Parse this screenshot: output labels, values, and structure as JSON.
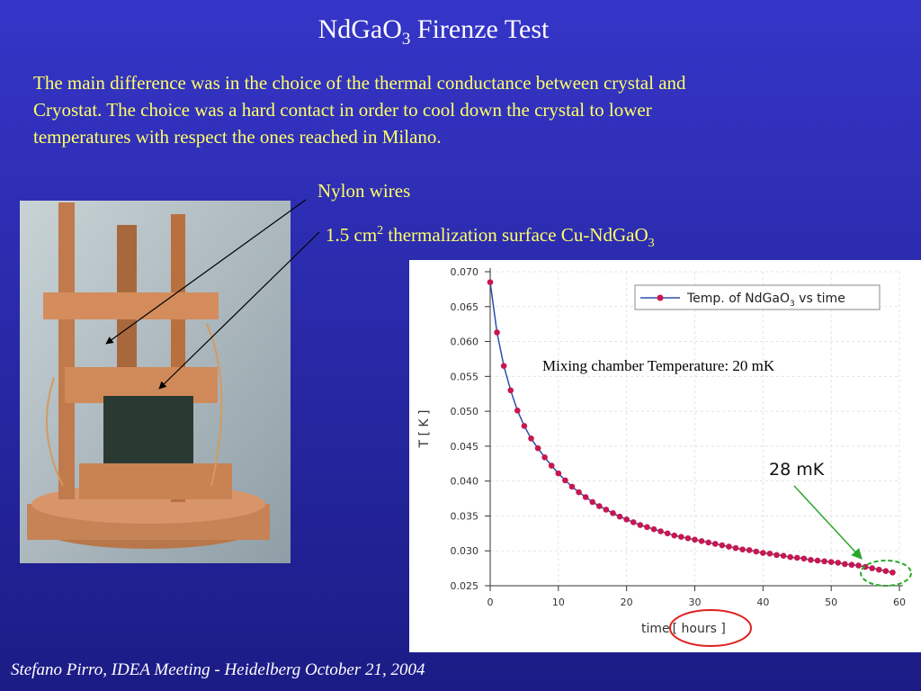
{
  "title": {
    "parts": [
      "NdGaO",
      "3",
      " Firenze Test"
    ]
  },
  "body": {
    "lines": [
      "The main difference was in the choice of the thermal conductance between crystal and",
      "Cryostat. The choice was a hard contact in order to cool  down the crystal to lower",
      "temperatures  with respect the ones reached in Milano."
    ]
  },
  "annotations": {
    "nylon": "Nylon wires",
    "surface": {
      "parts": [
        "1.5 cm",
        "2",
        " thermalization surface Cu-NdGaO",
        "3"
      ]
    },
    "mixing": "Mixing chamber Temperature: 20 mK"
  },
  "chart": {
    "type": "line",
    "ylabel": "T [ K ]",
    "xlabel": {
      "parts": [
        "time",
        "[ hours ]"
      ]
    },
    "legend": {
      "parts": [
        "Temp. of NdGaO",
        "3",
        " vs time"
      ]
    },
    "callout": "28 mK",
    "series_color": "#c8174f",
    "line_color": "#2b4fa8",
    "xlim": [
      0,
      60
    ],
    "ylim": [
      0.025,
      0.07
    ],
    "xticks": [
      0,
      10,
      20,
      30,
      40,
      50,
      60
    ],
    "yticks": [
      {
        "value": 0.025,
        "label": "0.025"
      },
      {
        "value": 0.03,
        "label": "0.030"
      },
      {
        "value": 0.035,
        "label": "0.035"
      },
      {
        "value": 0.04,
        "label": "0.040"
      },
      {
        "value": 0.045,
        "label": "0.045"
      },
      {
        "value": 0.05,
        "label": "0.050"
      },
      {
        "value": 0.055,
        "label": "0.055"
      },
      {
        "value": 0.06,
        "label": "0.060"
      },
      {
        "value": 0.065,
        "label": "0.065"
      },
      {
        "value": 0.07,
        "label": "0.070"
      }
    ],
    "grid": true,
    "x": [
      0,
      1,
      2,
      3,
      4,
      5,
      6,
      7,
      8,
      9,
      10,
      11,
      12,
      13,
      14,
      15,
      16,
      17,
      18,
      19,
      20,
      21,
      22,
      23,
      24,
      25,
      26,
      27,
      28,
      29,
      30,
      31,
      32,
      33,
      34,
      35,
      36,
      37,
      38,
      39,
      40,
      41,
      42,
      43,
      44,
      45,
      46,
      47,
      48,
      49,
      50,
      51,
      52,
      53,
      54,
      55,
      56,
      57,
      58,
      59
    ],
    "values": [
      0.0685,
      0.0613,
      0.0565,
      0.053,
      0.0501,
      0.0479,
      0.0461,
      0.0447,
      0.0434,
      0.0422,
      0.0411,
      0.0401,
      0.0392,
      0.0384,
      0.0377,
      0.037,
      0.0364,
      0.0359,
      0.0354,
      0.0349,
      0.0345,
      0.0341,
      0.0337,
      0.0334,
      0.0331,
      0.0328,
      0.0325,
      0.0322,
      0.032,
      0.0318,
      0.0316,
      0.0314,
      0.0312,
      0.031,
      0.0308,
      0.0306,
      0.0304,
      0.0302,
      0.0301,
      0.0299,
      0.0297,
      0.0296,
      0.0294,
      0.0293,
      0.0291,
      0.029,
      0.0289,
      0.0287,
      0.0286,
      0.0285,
      0.0284,
      0.0283,
      0.0281,
      0.028,
      0.0279,
      0.0277,
      0.0275,
      0.0273,
      0.0271,
      0.0269
    ]
  },
  "footer": "Stefano Pirro, IDEA Meeting - Heidelberg  October 21, 2004"
}
